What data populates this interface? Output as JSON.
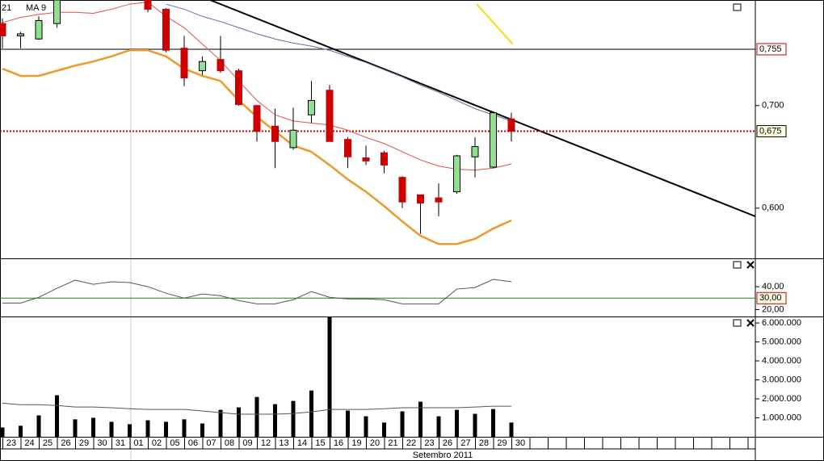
{
  "x_axis": {
    "categories": [
      "23",
      "24",
      "25",
      "26",
      "29",
      "30",
      "31",
      "01",
      "02",
      "05",
      "06",
      "07",
      "08",
      "09",
      "12",
      "13",
      "14",
      "15",
      "16",
      "19",
      "20",
      "21",
      "22",
      "23",
      "26",
      "27",
      "28",
      "29",
      "30"
    ],
    "month_label": "Setembro 2011"
  },
  "chart_data": [
    {
      "type": "candlestick",
      "legend": [
        {
          "text": "21",
          "color": "#3030a0"
        },
        {
          "text": "MA 9",
          "color": "#e04040"
        }
      ],
      "open": [
        0.78,
        0.768,
        0.765,
        0.78,
        null,
        null,
        null,
        null,
        0.803,
        0.794,
        0.756,
        0.734,
        0.745,
        0.734,
        0.7,
        0.68,
        0.659,
        0.691,
        0.715,
        0.667,
        0.649,
        0.654,
        0.63,
        0.613,
        0.61,
        0.616,
        0.65,
        0.64,
        0.687
      ],
      "high": [
        0.785,
        0.772,
        0.787,
        0.803,
        null,
        null,
        null,
        null,
        0.803,
        0.795,
        0.768,
        0.748,
        0.768,
        0.736,
        0.701,
        0.697,
        0.698,
        0.724,
        0.72,
        0.669,
        0.661,
        0.656,
        0.631,
        0.613,
        0.624,
        0.652,
        0.669,
        0.694,
        0.693
      ],
      "low": [
        0.756,
        0.756,
        0.764,
        0.776,
        null,
        null,
        null,
        null,
        0.791,
        0.752,
        0.719,
        0.73,
        0.732,
        0.7,
        0.665,
        0.639,
        0.657,
        0.683,
        0.665,
        0.639,
        0.642,
        0.634,
        0.6,
        0.575,
        0.592,
        0.614,
        0.63,
        0.639,
        0.665
      ],
      "close": [
        0.768,
        0.77,
        0.783,
        0.803,
        null,
        null,
        null,
        null,
        0.794,
        0.754,
        0.727,
        0.743,
        0.734,
        0.701,
        0.675,
        0.665,
        0.676,
        0.705,
        0.665,
        0.65,
        0.646,
        0.642,
        0.606,
        0.605,
        0.606,
        0.651,
        0.66,
        0.693,
        0.675
      ],
      "up_color": "#90e090",
      "down_color": "#cc0000",
      "series": [
        {
          "color": "#f0982a",
          "width": 2.5,
          "values": [
            0.736,
            0.729,
            0.729,
            0.734,
            0.739,
            0.743,
            0.748,
            0.754,
            0.754,
            0.748,
            0.736,
            0.729,
            0.724,
            0.705,
            0.689,
            0.675,
            0.661,
            0.655,
            0.642,
            0.628,
            0.616,
            0.602,
            0.587,
            0.573,
            0.565,
            0.565,
            0.57,
            0.58,
            0.588
          ]
        },
        {
          "color": "#e05050",
          "width": 1,
          "values": [
            0.781,
            0.786,
            0.789,
            0.791,
            0.791,
            0.79,
            0.794,
            0.799,
            0.801,
            0.787,
            0.776,
            0.76,
            0.744,
            0.724,
            0.705,
            0.691,
            0.685,
            0.683,
            0.681,
            0.676,
            0.669,
            0.663,
            0.655,
            0.647,
            0.641,
            0.638,
            0.637,
            0.639,
            0.643
          ]
        },
        {
          "color": "#6a6a9a",
          "width": 1,
          "values": [
            null,
            null,
            null,
            null,
            null,
            null,
            null,
            null,
            null,
            0.799,
            0.794,
            0.787,
            0.782,
            0.776,
            0.77,
            0.765,
            0.761,
            0.758,
            0.754,
            0.748,
            0.742,
            0.735,
            0.728,
            0.72,
            0.713,
            0.705,
            0.697,
            0.691,
            0.685
          ]
        }
      ],
      "hlines": [
        {
          "value": 0.755,
          "label": "0,755",
          "color": "#000000",
          "dotted": false,
          "label_color": "#cc0000",
          "box_fill": "#ffffff",
          "box_stroke": "#cc0000"
        },
        {
          "value": 0.675,
          "label": "0,675",
          "color": "#cc0000",
          "dotted": true,
          "label_color": "#000000",
          "box_fill": "#ffffe0",
          "box_stroke": "#000000"
        }
      ],
      "ylim": [
        0.551,
        0.803
      ],
      "yticks": [
        {
          "value": 0.7,
          "label": "0,700"
        },
        {
          "value": 0.6,
          "label": "0,600"
        }
      ]
    },
    {
      "type": "line",
      "series": [
        {
          "color": "#555555",
          "width": 1,
          "values": [
            25.7,
            25.7,
            30.7,
            38.6,
            45.7,
            42.1,
            44.3,
            43.6,
            40.0,
            34.3,
            30.0,
            33.6,
            32.1,
            27.9,
            25.0,
            25.0,
            28.6,
            35.7,
            30.7,
            29.3,
            29.3,
            28.6,
            25.0,
            25.0,
            25.0,
            37.9,
            39.3,
            46.4,
            44.3
          ]
        }
      ],
      "hlines": [
        {
          "value": 30,
          "label": "30,00",
          "color": "#208020",
          "dotted": false,
          "label_color": "#cc0000",
          "box_fill": "#ffffe0",
          "box_stroke": "#cc0000"
        }
      ],
      "ylim": [
        14,
        64
      ],
      "yticks": [
        {
          "value": 40,
          "label": "40,00"
        },
        {
          "value": 20,
          "label": "20,00"
        }
      ]
    },
    {
      "type": "bar",
      "color": "#000000",
      "values": [
        490000,
        580000,
        1130000,
        2190000,
        920000,
        1000000,
        790000,
        660000,
        870000,
        790000,
        920000,
        700000,
        1420000,
        1550000,
        2100000,
        1720000,
        1890000,
        2440000,
        6300000,
        1380000,
        1080000,
        750000,
        1340000,
        1850000,
        1080000,
        1420000,
        1210000,
        1460000,
        750000
      ],
      "series": [
        {
          "color": "#555555",
          "width": 1,
          "values": [
            1770000,
            1690000,
            1690000,
            1650000,
            1570000,
            1570000,
            1530000,
            1480000,
            1440000,
            1440000,
            1440000,
            1360000,
            1270000,
            1190000,
            1190000,
            1190000,
            1230000,
            1310000,
            1440000,
            1440000,
            1440000,
            1480000,
            1530000,
            1530000,
            1530000,
            1530000,
            1570000,
            1610000,
            1610000
          ]
        }
      ],
      "ylim": [
        0,
        6300000
      ],
      "yticks": [
        {
          "value": 1000000,
          "label": "1.000.000"
        },
        {
          "value": 2000000,
          "label": "2.000.000"
        },
        {
          "value": 3000000,
          "label": "3.000.000"
        },
        {
          "value": 4000000,
          "label": "4.000.000"
        },
        {
          "value": 5000000,
          "label": "5.000.000"
        },
        {
          "value": 6000000,
          "label": "6.000.000"
        }
      ]
    }
  ]
}
